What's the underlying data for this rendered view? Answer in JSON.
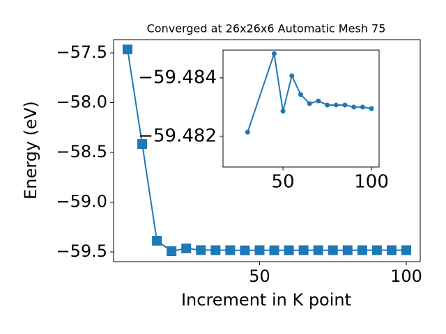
{
  "chart_data": [
    {
      "type": "line",
      "title": "Converged at 26x26x6 Automatic Mesh 75",
      "x_label": "Increment in K point",
      "y_label": "Energy (eV)",
      "x": [
        5,
        10,
        15,
        20,
        25,
        30,
        35,
        40,
        45,
        50,
        55,
        60,
        65,
        70,
        75,
        80,
        85,
        90,
        95,
        100
      ],
      "series": [
        {
          "color": "#1f77b4",
          "marker": "square",
          "values": [
            -57.465,
            -58.416,
            -59.388,
            -59.493,
            -59.465,
            -59.48214,
            -59.483,
            -59.483,
            -59.48483,
            -59.48286,
            -59.48407,
            -59.48343,
            -59.48312,
            -59.48321,
            -59.48307,
            -59.48307,
            -59.48307,
            -59.483,
            -59.483,
            -59.48295
          ]
        }
      ],
      "xlim": [
        0.25,
        104.75
      ],
      "ylim": [
        -59.598,
        -57.367
      ],
      "xticks": [
        50,
        100
      ],
      "yticks": [
        {
          "value": -59.5,
          "label": "−59.5"
        },
        {
          "value": -59.0,
          "label": "−59.0"
        },
        {
          "value": -58.5,
          "label": "−58.5"
        },
        {
          "value": -58.0,
          "label": "−58.0"
        },
        {
          "value": -57.5,
          "label": "−57.5"
        }
      ]
    },
    {
      "type": "line",
      "x": [
        30,
        45,
        50,
        55,
        60,
        65,
        70,
        75,
        80,
        85,
        90,
        95,
        100
      ],
      "series": [
        {
          "color": "#1f77b4",
          "marker": "circle",
          "values": [
            -59.48214,
            -59.48483,
            -59.48286,
            -59.48407,
            -59.48343,
            -59.48312,
            -59.48321,
            -59.48307,
            -59.48307,
            -59.48307,
            -59.483,
            -59.483,
            -59.48295
          ]
        }
      ],
      "xlim": [
        16.1,
        104.3
      ],
      "ylim": [
        -59.48095,
        -59.48495
      ],
      "xticks": [
        50,
        100
      ],
      "yticks": [
        {
          "value": -59.484,
          "label": "−59.484"
        },
        {
          "value": -59.482,
          "label": "−59.482"
        }
      ]
    }
  ]
}
